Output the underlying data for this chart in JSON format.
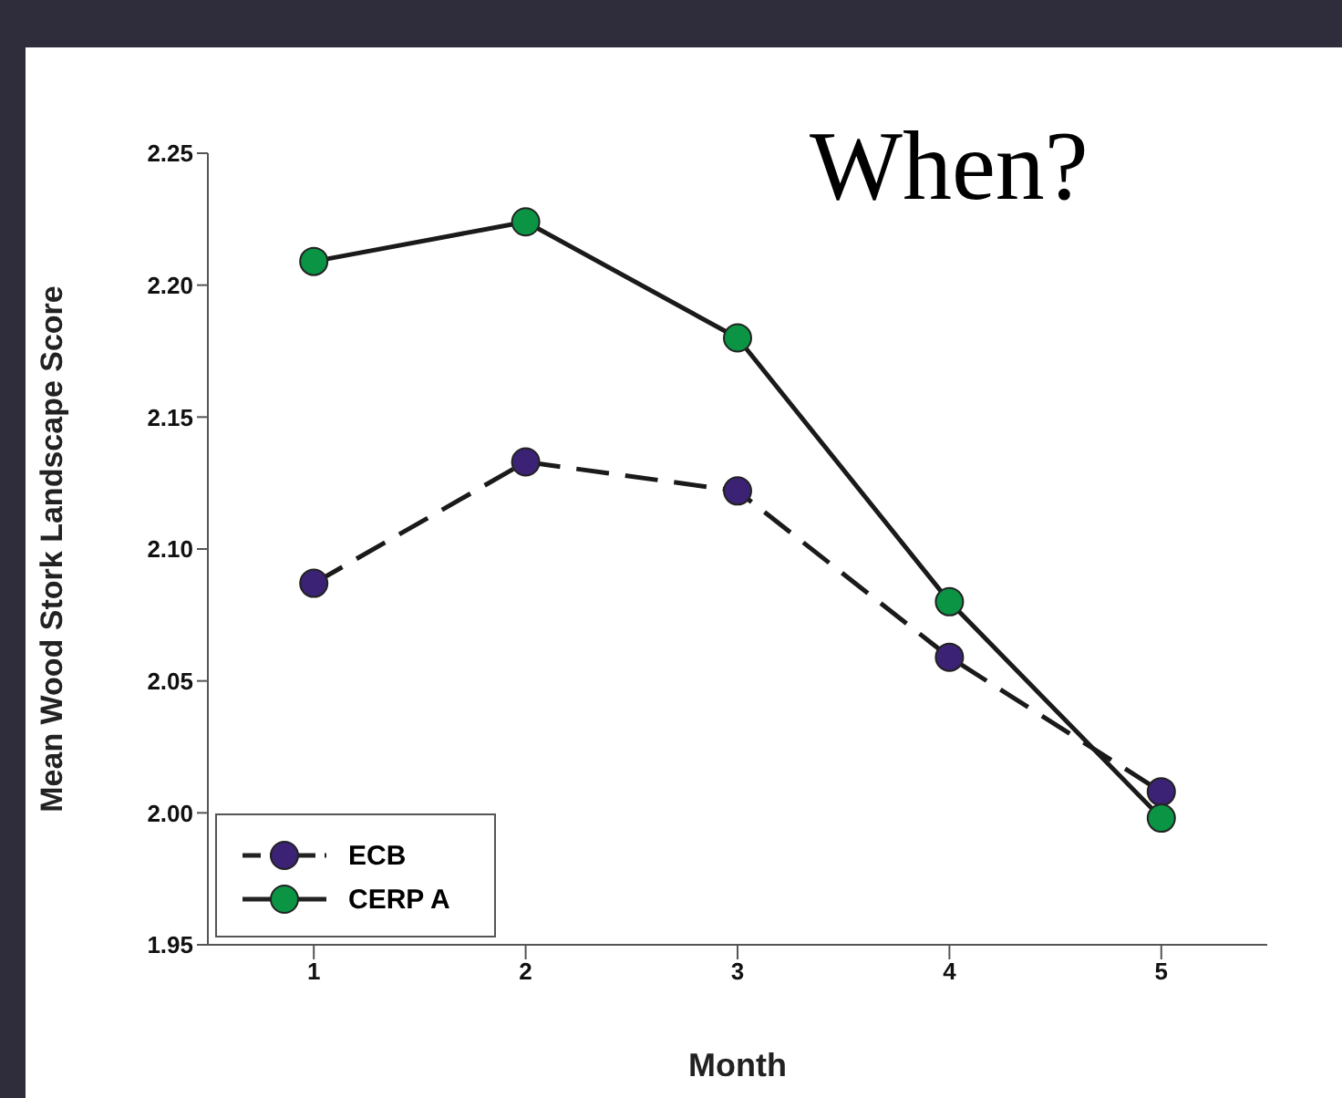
{
  "chart_data": {
    "type": "line",
    "title": "When?",
    "xlabel": "Month",
    "ylabel": "Mean Wood Stork Landscape Score",
    "x": [
      1,
      2,
      3,
      4,
      5
    ],
    "xlim": [
      0.5,
      5.5
    ],
    "xticks": [
      1,
      2,
      3,
      4,
      5
    ],
    "ylim": [
      1.95,
      2.25
    ],
    "yticks": [
      {
        "value": 1.95,
        "label": "1.95"
      },
      {
        "value": 2.0,
        "label": "2.00"
      },
      {
        "value": 2.05,
        "label": "2.05"
      },
      {
        "value": 2.1,
        "label": "2.10"
      },
      {
        "value": 2.15,
        "label": "2.15"
      },
      {
        "value": 2.2,
        "label": "2.20"
      },
      {
        "value": 2.25,
        "label": "2.25"
      }
    ],
    "series": [
      {
        "name": "ECB",
        "color": "#3b2274",
        "line_style": "dashed",
        "values": [
          2.087,
          2.133,
          2.122,
          2.059,
          2.008
        ]
      },
      {
        "name": "CERP A",
        "color": "#0a9444",
        "line_style": "solid",
        "values": [
          2.209,
          2.224,
          2.18,
          2.08,
          1.998
        ]
      }
    ],
    "marker": "circle",
    "legend": "bottom left",
    "grid": false
  }
}
